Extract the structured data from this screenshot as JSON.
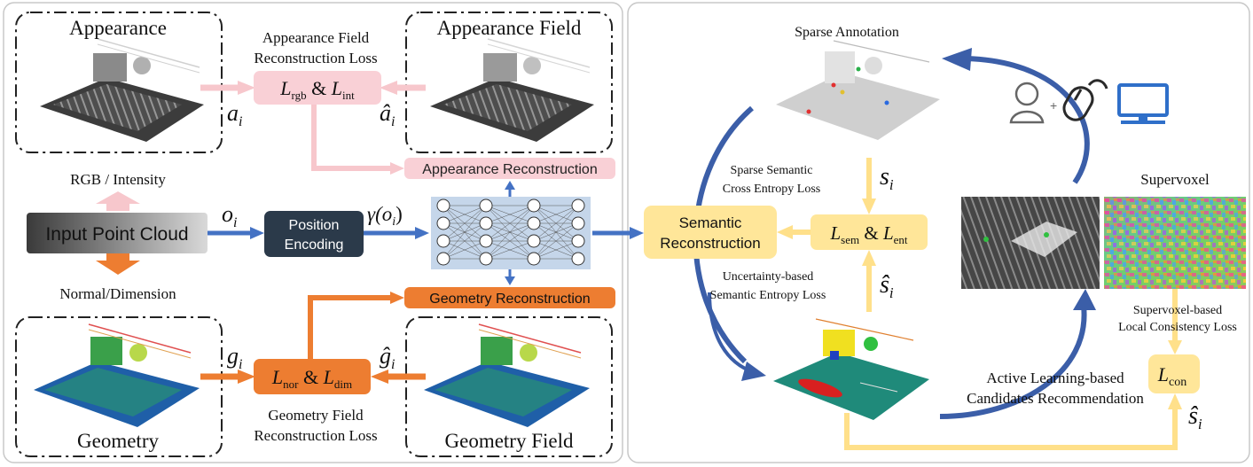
{
  "left_panel": {
    "appearance_label": "Appearance",
    "appearance_field_label": "Appearance Field",
    "appearance_loss_line1": "Appearance Field",
    "appearance_loss_line2": "Reconstruction Loss",
    "loss_rgb_int": {
      "l1": "L",
      "s1": "rgb",
      "amp": "&",
      "l2": "L",
      "s2": "int"
    },
    "a_i": {
      "base": "a",
      "sub": "i"
    },
    "a_hat_i": {
      "base": "â",
      "sub": "i"
    },
    "appearance_recon_label": "Appearance Reconstruction",
    "rgb_intensity_label": "RGB / Intensity",
    "input_point_cloud_label": "Input Point Cloud",
    "o_i": {
      "base": "o",
      "sub": "i"
    },
    "position_encoding_line1": "Position",
    "position_encoding_line2": "Encoding",
    "gamma_o_i": {
      "pre": "γ(o",
      "sub": "i",
      "post": ")"
    },
    "normal_dimension_label": "Normal/Dimension",
    "geometry_recon_label": "Geometry Reconstruction",
    "g_i": {
      "base": "g",
      "sub": "i"
    },
    "g_hat_i": {
      "base": "ĝ",
      "sub": "i"
    },
    "loss_nor_dim": {
      "l1": "L",
      "s1": "nor",
      "amp": "&",
      "l2": "L",
      "s2": "dim"
    },
    "geometry_label": "Geometry",
    "geometry_field_label": "Geometry Field",
    "geometry_loss_line1": "Geometry Field",
    "geometry_loss_line2": "Reconstruction Loss"
  },
  "right_panel": {
    "sparse_annotation_label": "Sparse Annotation",
    "sparse_ce_line1": "Sparse Semantic",
    "sparse_ce_line2": "Cross Entropy Loss",
    "s_i": {
      "base": "s",
      "sub": "i"
    },
    "semantic_recon_line1": "Semantic",
    "semantic_recon_line2": "Reconstruction",
    "loss_sem_ent": {
      "l1": "L",
      "s1": "sem",
      "amp": "&",
      "l2": "L",
      "s2": "ent"
    },
    "uncertainty_line1": "Uncertainty-based",
    "uncertainty_line2": "Semantic Entropy Loss",
    "s_hat_i": {
      "base": "ŝ",
      "sub": "i"
    },
    "supervoxel_label": "Supervoxel",
    "supervoxel_loss_line1": "Supervoxel-based",
    "supervoxel_loss_line2": "Local Consistency Loss",
    "loss_con": {
      "l1": "L",
      "s1": "con"
    },
    "s_hat_i_bottom": {
      "base": "ŝ",
      "sub": "i"
    },
    "active_learning_line1": "Active Learning-based",
    "active_learning_line2": "Candidates Recommendation",
    "user_plus_glyph": "+"
  },
  "colors": {
    "pink_arrow": "#f7c7cc",
    "pink_box": "#f9d0d6",
    "blue_arrow": "#4472c4",
    "dark_box": "#2b3a4a",
    "orange": "#ed7d31",
    "yellow": "#ffe699",
    "yellow_arrow": "#ffe08a",
    "curve_blue": "#3b5ea8",
    "icon_blue": "#2f6fc9",
    "nn_bg": "#c5d6ea"
  }
}
